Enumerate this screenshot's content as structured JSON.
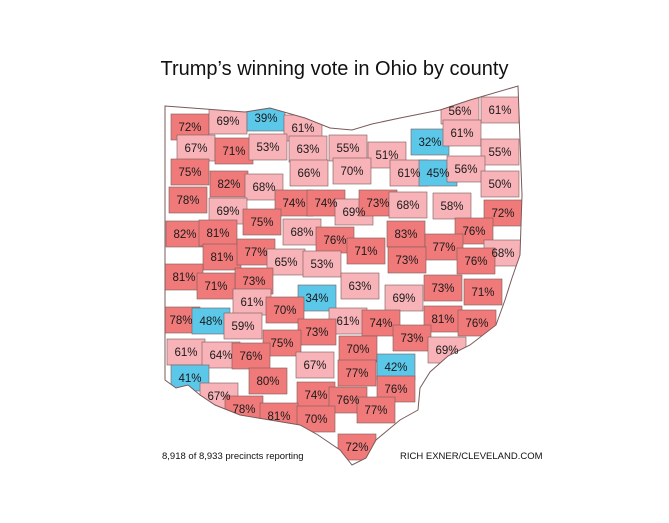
{
  "title": "Trump’s winning vote in Ohio by county",
  "footer_left": "8,918 of 8,933 precincts reporting",
  "footer_right": "RICH EXNER/CLEVELAND.COM",
  "colors": {
    "dark_red": "#f07a7a",
    "light_red": "#f7b3b8",
    "blue": "#5bc8ea",
    "border": "#7a5a5a"
  },
  "counties": [
    {
      "label": "72%",
      "c": "d"
    },
    {
      "label": "69%",
      "c": "l"
    },
    {
      "label": "39%",
      "c": "b"
    },
    {
      "label": "61%",
      "c": "l"
    },
    {
      "label": "56%",
      "c": "l"
    },
    {
      "label": "61%",
      "c": "l"
    },
    {
      "label": "67%",
      "c": "l"
    },
    {
      "label": "71%",
      "c": "d"
    },
    {
      "label": "53%",
      "c": "l"
    },
    {
      "label": "63%",
      "c": "l"
    },
    {
      "label": "55%",
      "c": "l"
    },
    {
      "label": "51%",
      "c": "l"
    },
    {
      "label": "32%",
      "c": "b"
    },
    {
      "label": "61%",
      "c": "l"
    },
    {
      "label": "55%",
      "c": "l"
    },
    {
      "label": "75%",
      "c": "d"
    },
    {
      "label": "82%",
      "c": "d"
    },
    {
      "label": "66%",
      "c": "l"
    },
    {
      "label": "70%",
      "c": "l"
    },
    {
      "label": "61%",
      "c": "l"
    },
    {
      "label": "45%",
      "c": "b"
    },
    {
      "label": "56%",
      "c": "l"
    },
    {
      "label": "68%",
      "c": "l"
    },
    {
      "label": "50%",
      "c": "l"
    },
    {
      "label": "78%",
      "c": "d"
    },
    {
      "label": "74%",
      "c": "d"
    },
    {
      "label": "74%",
      "c": "d"
    },
    {
      "label": "69%",
      "c": "l"
    },
    {
      "label": "73%",
      "c": "d"
    },
    {
      "label": "68%",
      "c": "l"
    },
    {
      "label": "58%",
      "c": "l"
    },
    {
      "label": "72%",
      "c": "d"
    },
    {
      "label": "69%",
      "c": "l"
    },
    {
      "label": "75%",
      "c": "d"
    },
    {
      "label": "82%",
      "c": "d"
    },
    {
      "label": "81%",
      "c": "d"
    },
    {
      "label": "68%",
      "c": "l"
    },
    {
      "label": "76%",
      "c": "d"
    },
    {
      "label": "83%",
      "c": "d"
    },
    {
      "label": "76%",
      "c": "d"
    },
    {
      "label": "77%",
      "c": "d"
    },
    {
      "label": "71%",
      "c": "d"
    },
    {
      "label": "68%",
      "c": "l"
    },
    {
      "label": "81%",
      "c": "d"
    },
    {
      "label": "77%",
      "c": "d"
    },
    {
      "label": "65%",
      "c": "l"
    },
    {
      "label": "53%",
      "c": "l"
    },
    {
      "label": "73%",
      "c": "d"
    },
    {
      "label": "76%",
      "c": "d"
    },
    {
      "label": "81%",
      "c": "d"
    },
    {
      "label": "73%",
      "c": "d"
    },
    {
      "label": "63%",
      "c": "l"
    },
    {
      "label": "71%",
      "c": "d"
    },
    {
      "label": "73%",
      "c": "d"
    },
    {
      "label": "71%",
      "c": "d"
    },
    {
      "label": "61%",
      "c": "l"
    },
    {
      "label": "34%",
      "c": "b"
    },
    {
      "label": "69%",
      "c": "l"
    },
    {
      "label": "78%",
      "c": "d"
    },
    {
      "label": "48%",
      "c": "b"
    },
    {
      "label": "59%",
      "c": "l"
    },
    {
      "label": "70%",
      "c": "d"
    },
    {
      "label": "61%",
      "c": "l"
    },
    {
      "label": "74%",
      "c": "d"
    },
    {
      "label": "81%",
      "c": "d"
    },
    {
      "label": "76%",
      "c": "d"
    },
    {
      "label": "73%",
      "c": "d"
    },
    {
      "label": "73%",
      "c": "d"
    },
    {
      "label": "75%",
      "c": "d"
    },
    {
      "label": "61%",
      "c": "l"
    },
    {
      "label": "64%",
      "c": "l"
    },
    {
      "label": "76%",
      "c": "d"
    },
    {
      "label": "70%",
      "c": "d"
    },
    {
      "label": "69%",
      "c": "l"
    },
    {
      "label": "67%",
      "c": "l"
    },
    {
      "label": "42%",
      "c": "b"
    },
    {
      "label": "41%",
      "c": "b"
    },
    {
      "label": "80%",
      "c": "d"
    },
    {
      "label": "77%",
      "c": "d"
    },
    {
      "label": "67%",
      "c": "l"
    },
    {
      "label": "74%",
      "c": "d"
    },
    {
      "label": "76%",
      "c": "d"
    },
    {
      "label": "76%",
      "c": "d"
    },
    {
      "label": "78%",
      "c": "d"
    },
    {
      "label": "81%",
      "c": "d"
    },
    {
      "label": "70%",
      "c": "d"
    },
    {
      "label": "77%",
      "c": "d"
    },
    {
      "label": "72%",
      "c": "d"
    }
  ]
}
